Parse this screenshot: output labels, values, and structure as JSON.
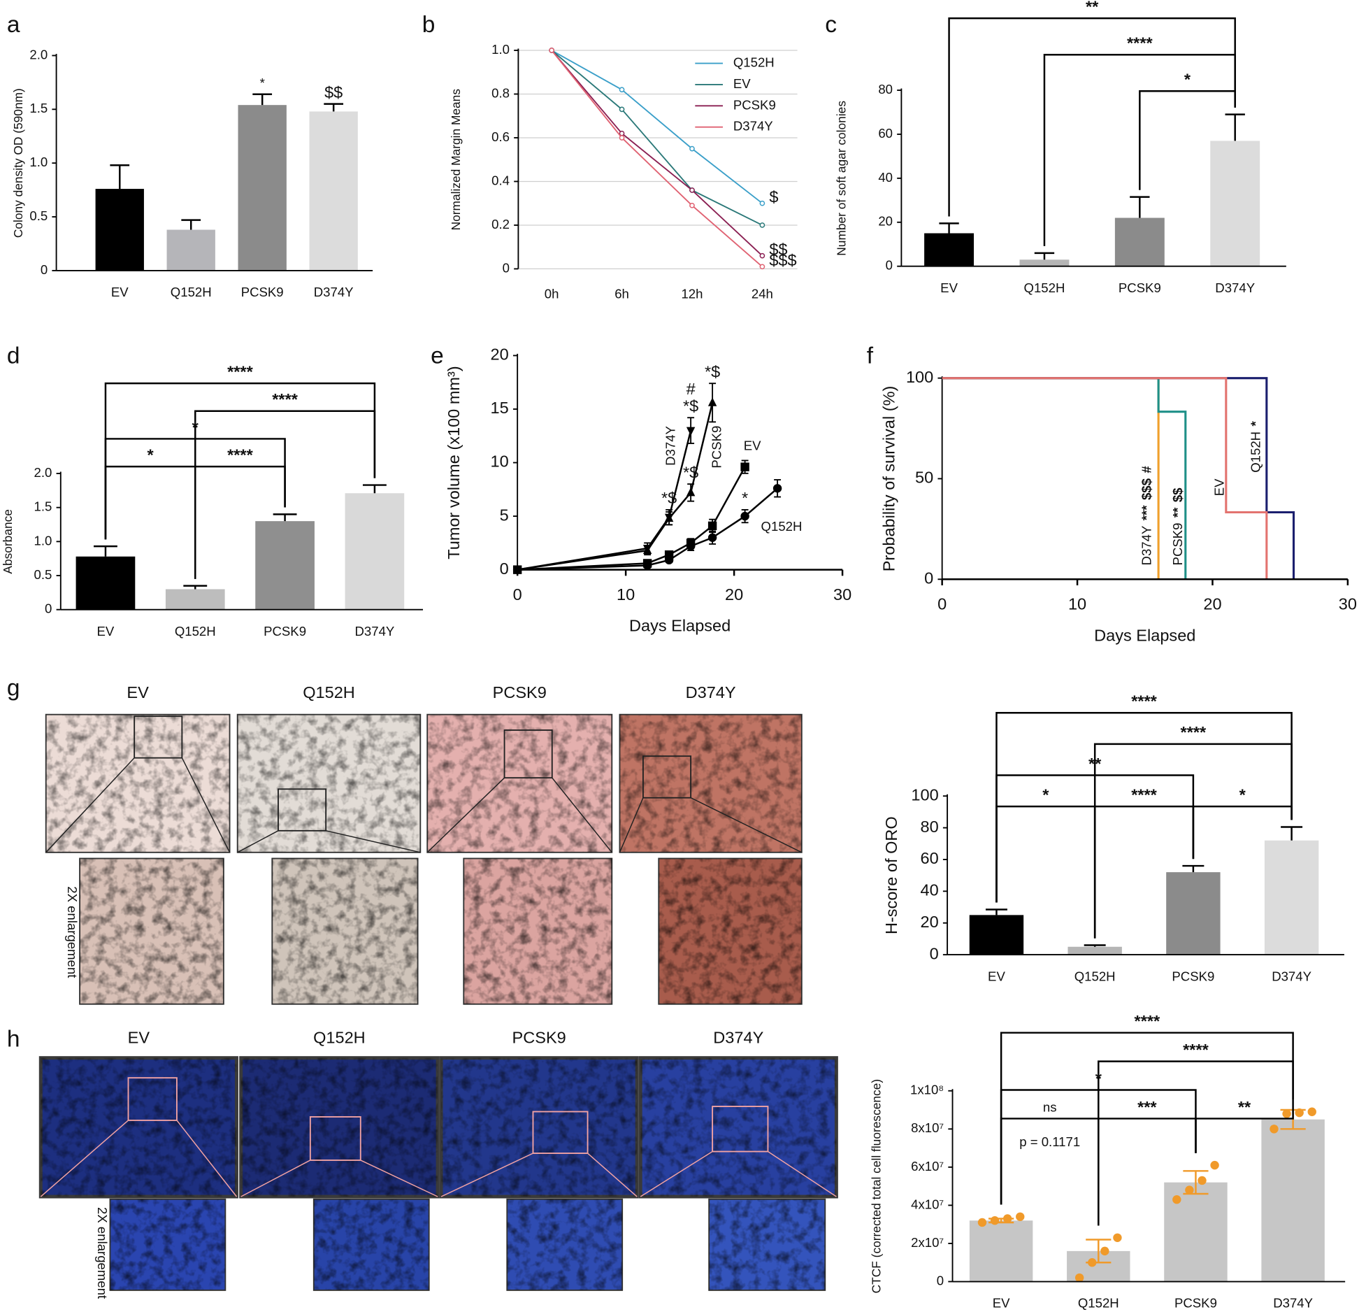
{
  "chart_data": [
    {
      "type": "bar",
      "panel": "a",
      "ylabel": "Colony density OD (590nm)",
      "categories": [
        "EV",
        "Q152H",
        "PCSK9",
        "D374Y"
      ],
      "values": [
        0.76,
        0.38,
        1.54,
        1.48
      ],
      "errors": [
        0.22,
        0.09,
        0.1,
        0.07
      ],
      "colors": [
        "#000000",
        "#b5b5b9",
        "#8b8b8b",
        "#dcdcdc"
      ],
      "bar_labels": [
        null,
        null,
        "*",
        "$$"
      ],
      "ylim": [
        0,
        2
      ],
      "yticks": [
        0,
        0.5,
        {
          "value": 1,
          "label": "1.0"
        },
        1.5,
        {
          "value": 2,
          "label": "2.0"
        }
      ],
      "grid": false
    },
    {
      "type": "line",
      "panel": "b",
      "ylabel": "Normalized Margin Means",
      "categories": [
        "0h",
        "6h",
        "12h",
        "24h"
      ],
      "series": [
        {
          "name": "Q152H",
          "color": "#3a9fc9",
          "values": [
            1,
            0.82,
            0.55,
            0.3
          ],
          "end_label": "$"
        },
        {
          "name": "EV",
          "color": "#2a7878",
          "values": [
            1,
            0.73,
            0.36,
            0.2
          ]
        },
        {
          "name": "PCSK9",
          "color": "#8a1f52",
          "values": [
            1,
            0.62,
            0.36,
            0.06
          ],
          "end_label": "$$"
        },
        {
          "name": "D374Y",
          "color": "#e06272",
          "values": [
            1,
            0.6,
            0.29,
            0.01
          ],
          "end_label": "$$$"
        }
      ],
      "ylim": [
        0,
        1
      ],
      "yticks": [
        0,
        0.2,
        0.4,
        0.6,
        0.8,
        {
          "value": 1,
          "label": "1.0"
        }
      ],
      "grid": true,
      "legend": "upper right"
    },
    {
      "type": "bar",
      "panel": "c",
      "ylabel": "Number of soft agar colonies",
      "categories": [
        "EV",
        "Q152H",
        "PCSK9",
        "D374Y"
      ],
      "values": [
        15,
        3,
        22,
        57
      ],
      "errors": [
        4.5,
        3,
        9.5,
        12
      ],
      "colors": [
        "#000000",
        "#b5b5b5",
        "#8b8b8b",
        "#dcdcdc"
      ],
      "brackets": [
        {
          "between": [
            0,
            3
          ],
          "label": "**"
        },
        {
          "between": [
            1,
            3
          ],
          "label": "****"
        },
        {
          "between": [
            2,
            3
          ],
          "label": "*"
        }
      ],
      "ylim": [
        0,
        80
      ],
      "yticks": [
        0,
        20,
        40,
        60,
        80
      ],
      "grid": false
    },
    {
      "type": "bar",
      "panel": "d",
      "ylabel": "Absorbance",
      "categories": [
        "EV",
        "Q152H",
        "PCSK9",
        "D374Y"
      ],
      "values": [
        0.78,
        0.3,
        1.3,
        1.71
      ],
      "errors": [
        0.15,
        0.05,
        0.1,
        0.12
      ],
      "colors": [
        "#000000",
        "#bdbdbd",
        "#8f8f8f",
        "#d9d9d9"
      ],
      "brackets": [
        {
          "between": [
            0,
            3
          ],
          "label": "****"
        },
        {
          "between": [
            1,
            3
          ],
          "label": "****"
        },
        {
          "between": [
            0,
            2
          ],
          "label": "*"
        },
        {
          "between": [
            0,
            1
          ],
          "label": "*"
        },
        {
          "between": [
            1,
            2
          ],
          "label": "****"
        }
      ],
      "ylim": [
        0,
        2
      ],
      "yticks": [
        0,
        0.5,
        {
          "value": 1,
          "label": "1.0"
        },
        1.5,
        {
          "value": 2,
          "label": "2.0"
        }
      ],
      "grid": false
    },
    {
      "type": "line",
      "panel": "e",
      "xlabel": "Days Elapsed",
      "ylabel": "Tumor volume (x100 mm³)",
      "series": [
        {
          "name": "D374Y",
          "color": "#000000",
          "marker": "triangle-down",
          "x": [
            0,
            12,
            14,
            16
          ],
          "values": [
            0,
            2,
            4.9,
            13
          ],
          "errors": [
            0,
            0.5,
            0.7,
            1.2
          ],
          "point_labels": [
            null,
            null,
            [
              "*$"
            ],
            [
              "#",
              "*$"
            ]
          ]
        },
        {
          "name": "PCSK9",
          "color": "#000000",
          "marker": "triangle-up",
          "x": [
            0,
            12,
            14,
            16,
            18
          ],
          "values": [
            0,
            1.8,
            4.8,
            7.2,
            15.6
          ],
          "errors": [
            0,
            0.4,
            0.6,
            0.8,
            1.8
          ],
          "point_labels": [
            null,
            null,
            null,
            [
              "*$"
            ],
            [
              "*$"
            ]
          ]
        },
        {
          "name": "EV",
          "color": "#000000",
          "marker": "square",
          "x": [
            0,
            12,
            14,
            16,
            18,
            21
          ],
          "values": [
            0,
            0.6,
            1.4,
            2.5,
            4.1,
            9.6
          ],
          "errors": [
            0,
            0.3,
            0.3,
            0.4,
            0.6,
            0.6
          ]
        },
        {
          "name": "Q152H",
          "color": "#000000",
          "marker": "circle",
          "x": [
            0,
            12,
            14,
            16,
            18,
            21,
            24
          ],
          "values": [
            0,
            0.4,
            0.9,
            2.2,
            3,
            5,
            7.6
          ],
          "errors": [
            0,
            0.2,
            0.2,
            0.4,
            0.6,
            0.6,
            0.8
          ],
          "point_labels": [
            null,
            null,
            null,
            null,
            null,
            [
              "*"
            ],
            null
          ]
        }
      ],
      "xlim": [
        0,
        30
      ],
      "xticks": [
        0,
        10,
        20,
        30
      ],
      "ylim": [
        0,
        20
      ],
      "yticks": [
        0,
        5,
        10,
        15,
        20
      ],
      "grid": false
    },
    {
      "type": "step",
      "panel": "f",
      "xlabel": "Days Elapsed",
      "ylabel": "Probability of survival (%)",
      "series": [
        {
          "name": "D374Y",
          "color": "#f0a02c",
          "x": [
            0,
            16
          ],
          "values": [
            100,
            0
          ],
          "sig": [
            "***",
            "$$$",
            "#"
          ]
        },
        {
          "name": "PCSK9",
          "color": "#1f9088",
          "x": [
            0,
            16,
            18
          ],
          "values": [
            100,
            83.3,
            0
          ],
          "sig": [
            "**",
            "$$"
          ]
        },
        {
          "name": "Q152H",
          "color": "#1b1f6e",
          "x": [
            0,
            24,
            26
          ],
          "values": [
            100,
            33.3,
            0
          ],
          "sig": [
            "*"
          ]
        },
        {
          "name": "EV",
          "color": "#e3736f",
          "x": [
            0,
            21,
            24
          ],
          "values": [
            100,
            33.3,
            0
          ]
        }
      ],
      "xlim": [
        0,
        30
      ],
      "xticks": [
        0,
        10,
        20,
        30
      ],
      "ylim": [
        0,
        100
      ],
      "yticks": [
        0,
        50,
        100
      ],
      "grid": false
    },
    {
      "type": "bar",
      "ylabel": "H-score of ORO",
      "categories": [
        "EV",
        "Q152H",
        "PCSK9",
        "D374Y"
      ],
      "values": [
        25,
        5,
        52,
        72
      ],
      "errors": [
        3.5,
        1,
        4,
        8.5
      ],
      "colors": [
        "#000000",
        "#b5b5b5",
        "#8b8b8b",
        "#dcdcdc"
      ],
      "brackets": [
        {
          "between": [
            0,
            3
          ],
          "label": "****"
        },
        {
          "between": [
            1,
            3
          ],
          "label": "****"
        },
        {
          "between": [
            0,
            2
          ],
          "label": "**"
        },
        {
          "between": [
            0,
            1
          ],
          "label": "*"
        },
        {
          "between": [
            1,
            2
          ],
          "label": "****"
        },
        {
          "between": [
            2,
            3
          ],
          "label": "*"
        }
      ],
      "ylim": [
        0,
        100
      ],
      "yticks": [
        0,
        20,
        40,
        60,
        80,
        100
      ],
      "grid": false
    },
    {
      "type": "bar",
      "ylabel": "CTCF (corrected total cell fluorescence)",
      "categories": [
        "EV",
        "Q152H",
        "PCSK9",
        "D374Y"
      ],
      "values": [
        32000000,
        16000000,
        52000000,
        85000000
      ],
      "errors": [
        1000000,
        6000000,
        6000000,
        5000000
      ],
      "colors": [
        "#c6c6c6",
        "#c6c6c6",
        "#c6c6c6",
        "#c6c6c6"
      ],
      "error_color": "#f09a2a",
      "dot_color": "#f09a2a",
      "dots": [
        [
          31000000,
          32000000,
          33000000,
          34000000
        ],
        [
          2000000,
          10000000,
          16000000,
          23000000
        ],
        [
          43000000,
          48000000,
          53000000,
          61000000
        ],
        [
          80000000,
          88000000,
          88500000,
          89000000
        ]
      ],
      "brackets": [
        {
          "between": [
            0,
            3
          ],
          "label": "****"
        },
        {
          "between": [
            1,
            3
          ],
          "label": "****"
        },
        {
          "between": [
            0,
            2
          ],
          "label": "*"
        },
        {
          "between": [
            0,
            1
          ],
          "label": "ns",
          "note": "p = 0.1171"
        },
        {
          "between": [
            1,
            2
          ],
          "label": "***"
        },
        {
          "between": [
            2,
            3
          ],
          "label": "**"
        }
      ],
      "ylim": [
        0,
        100000000
      ],
      "yticks": [
        0,
        {
          "value": 20000000,
          "label": "2x10⁷"
        },
        {
          "value": 40000000,
          "label": "4x10⁷"
        },
        {
          "value": 60000000,
          "label": "6x10⁷"
        },
        {
          "value": 80000000,
          "label": "8x10⁷"
        },
        {
          "value": 100000000,
          "label": "1x10⁸"
        }
      ],
      "grid": false
    }
  ],
  "micrographs": [
    {
      "panel": "g",
      "labels": [
        "EV",
        "Q152H",
        "PCSK9",
        "D374Y"
      ],
      "enlargement": "2X enlargement"
    },
    {
      "panel": "h",
      "labels": [
        "EV",
        "Q152H",
        "PCSK9",
        "D374Y"
      ],
      "enlargement": "2X enlargement"
    }
  ]
}
